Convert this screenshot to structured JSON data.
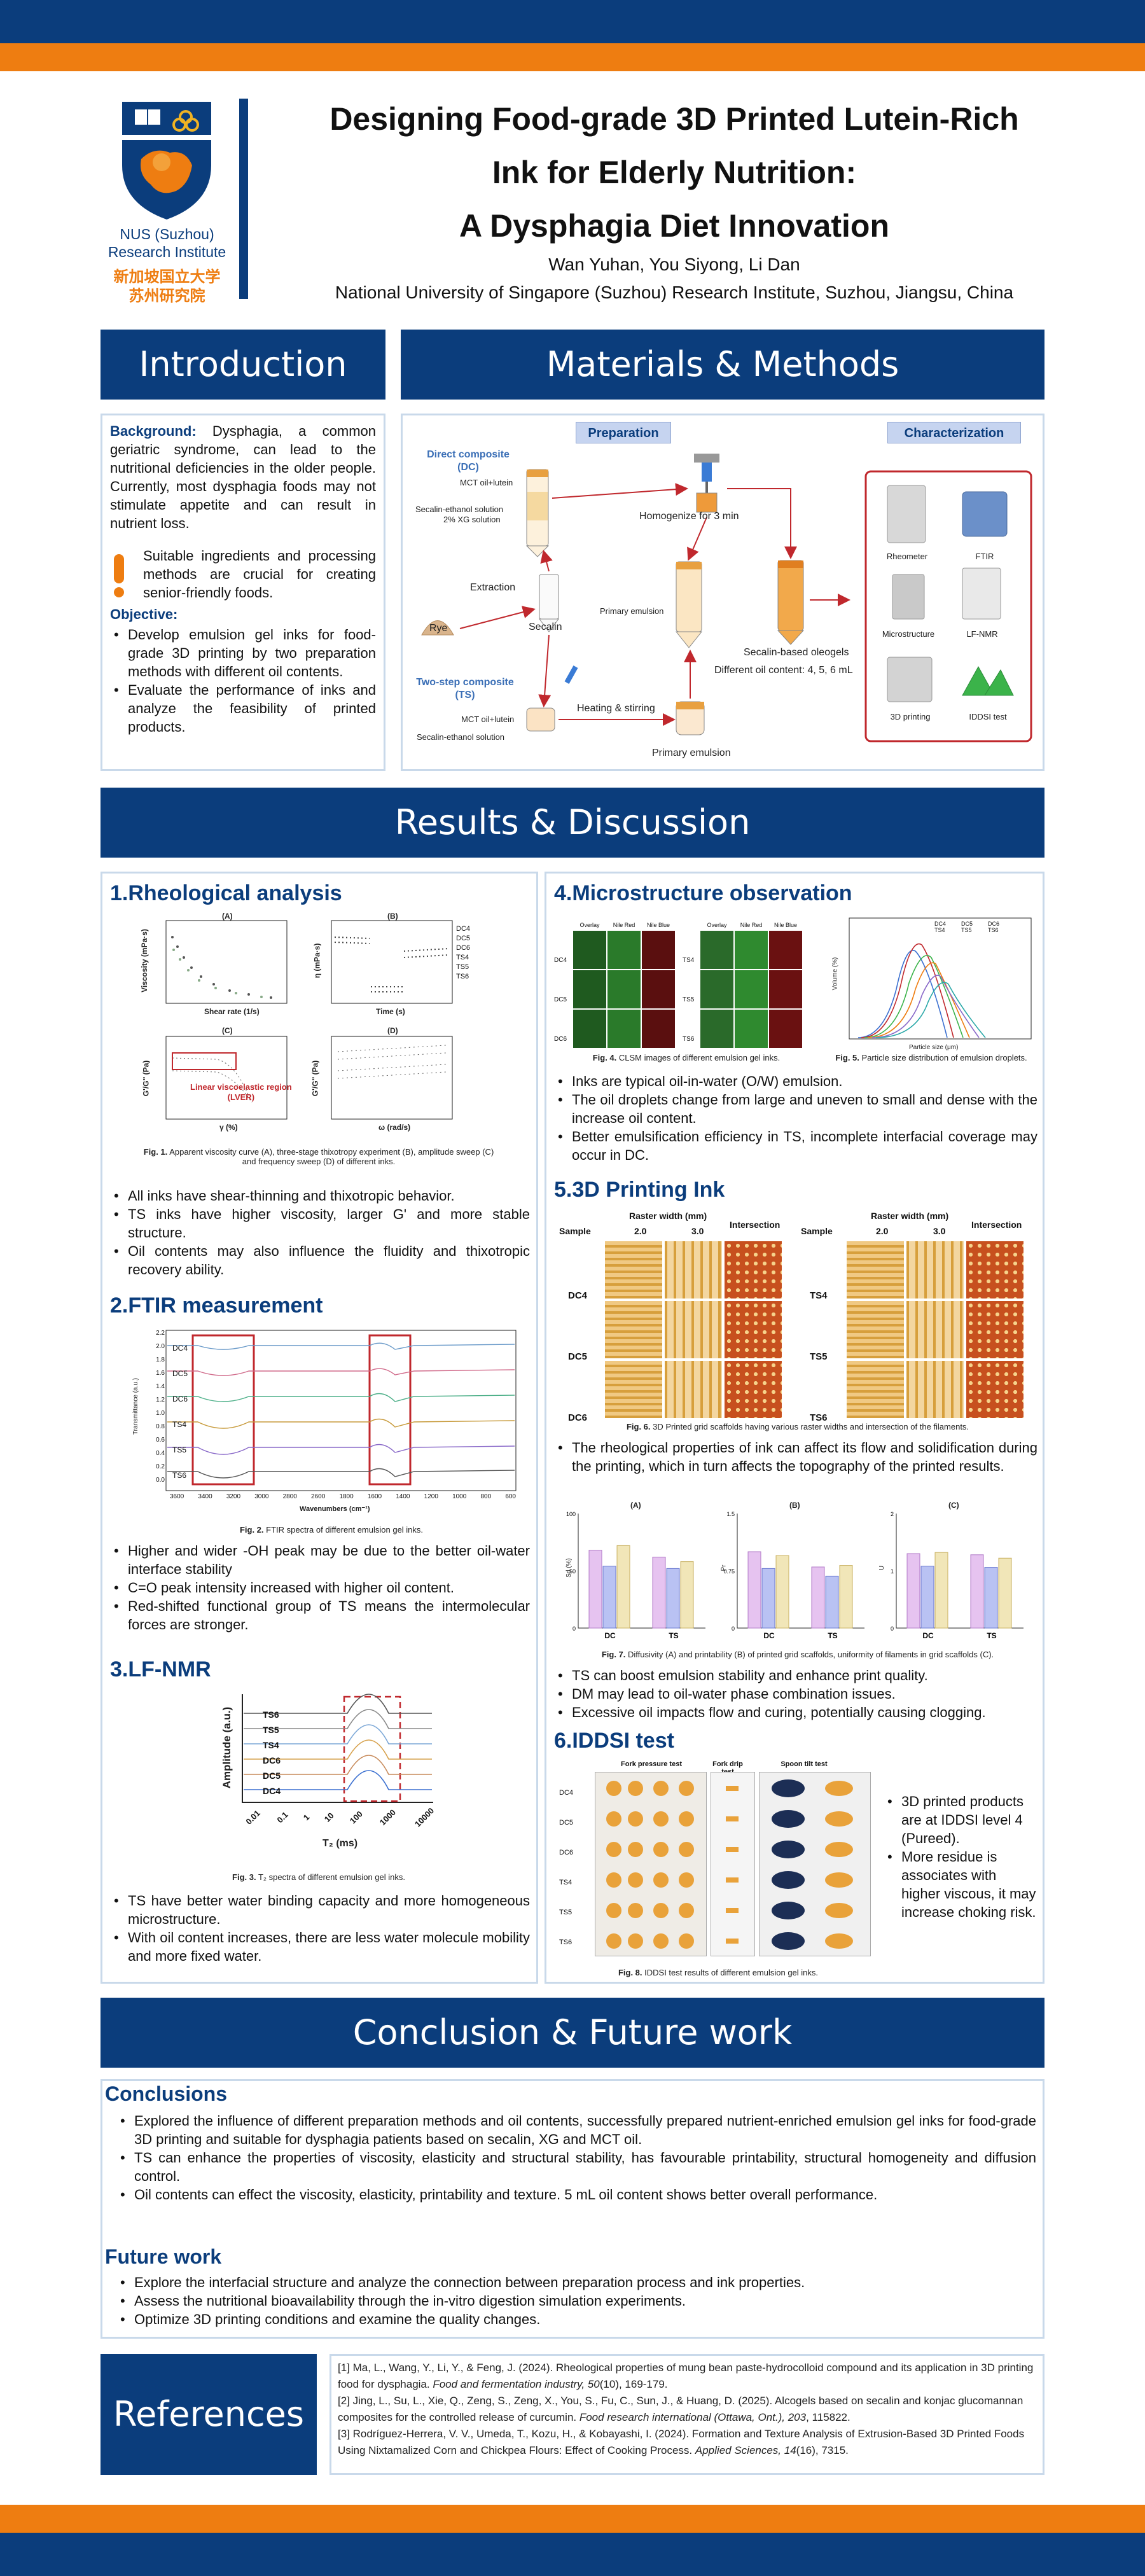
{
  "header": {
    "title_line1": "Designing Food-grade 3D Printed Lutein-Rich",
    "title_line2": "Ink for Elderly Nutrition:",
    "title_line3": "A Dysphagia Diet Innovation",
    "authors": "Wan Yuhan, You Siyong, Li Dan",
    "affiliation": "National University of Singapore (Suzhou) Research Institute, Suzhou, Jiangsu, China",
    "logo_text_en1": "NUS (Suzhou)",
    "logo_text_en2": "Research Institute",
    "logo_text_cn1": "新加坡国立大学",
    "logo_text_cn2": "苏州研究院"
  },
  "colors": {
    "primary": "#0b3d7c",
    "accent": "#ee7d11",
    "panel_border": "#c9d9ea",
    "red": "#c0282d"
  },
  "introduction": {
    "heading": "Introduction",
    "background_label": "Background:",
    "background_text": "Dysphagia, a common geriatric syndrome, can lead to the nutritional deficiencies in the older people. Currently, most dysphagia foods may not stimulate appetite and can result in nutrient loss.",
    "highlight": "Suitable ingredients and processing methods are crucial for creating senior-friendly foods.",
    "objective_label": "Objective:",
    "objectives": [
      "Develop emulsion gel inks for food-grade 3D printing by two preparation methods with different oil contents.",
      "Evaluate the performance of inks and analyze the feasibility of printed products."
    ]
  },
  "methods": {
    "heading": "Materials & Methods",
    "preparation": "Preparation",
    "characterization": "Characterization",
    "dc_title": "Direct composite",
    "dc_abbr": "(DC)",
    "mct_lutein": "MCT oil+lutein",
    "secalin_ethanol": "Secalin-ethanol solution",
    "xg_solution": "2% XG solution",
    "homogenize": "Homogenize for 3 min",
    "extraction": "Extraction",
    "rye": "Rye",
    "secalin": "Secalin",
    "primary_emulsion": "Primary emulsion",
    "ts_title": "Two-step composite",
    "ts_abbr": "(TS)",
    "heating": "Heating & stirring",
    "primary_emulsion_bottom": "Primary emulsion",
    "oleogels": "Secalin-based oleogels",
    "oil_content": "Different oil content: 4, 5, 6 mL",
    "instruments": [
      "Rheometer",
      "FTIR",
      "Microstructure",
      "LF-NMR",
      "3D printing",
      "IDDSI test"
    ]
  },
  "results": {
    "heading": "Results & Discussion",
    "rheology": {
      "title": "1.Rheological analysis",
      "panel_labels": [
        "(A)",
        "(B)",
        "(C)",
        "(D)"
      ],
      "axis_a_x": "Shear rate (1/s)",
      "axis_a_y": "Viscosity (mPa·s)",
      "axis_b_x": "Time (s)",
      "axis_b_y": "η (mPa·s)",
      "axis_c_x": "γ (%)",
      "axis_c_y": "G'/G'' (Pa)",
      "axis_d_x": "ω (rad/s)",
      "axis_d_y": "G'/G'' (Pa)",
      "legend_b": [
        "DC4",
        "DC5",
        "DC6",
        "TS4",
        "TS5",
        "TS6"
      ],
      "lver_line1": "Linear viscoelastic region",
      "lver_line2": "(LVER)",
      "caption_fig": "Fig. 1.",
      "caption": "Apparent viscosity curve (A), three-stage thixotropy experiment (B), amplitude sweep (C) and frequency sweep (D) of different inks.",
      "bullets": [
        "All inks have shear-thinning and thixotropic behavior.",
        "TS inks have higher viscosity, larger G' and more stable structure.",
        "Oil contents may also influence the fluidity and thixotropic recovery ability."
      ]
    },
    "ftir": {
      "title": "2.FTIR measurement",
      "samples": [
        "DC4",
        "DC5",
        "DC6",
        "TS4",
        "TS5",
        "TS6"
      ],
      "xlabel": "Wavenumbers (cm⁻¹)",
      "ylabel": "Transmittance (a.u.)",
      "xticks": [
        "3600",
        "3400",
        "3200",
        "3000",
        "2800",
        "2600",
        "1800",
        "1600",
        "1400",
        "1200",
        "1000",
        "800",
        "600"
      ],
      "yticks": [
        "2.2",
        "2.0",
        "1.8",
        "1.6",
        "1.4",
        "1.2",
        "1.0",
        "0.8",
        "0.6",
        "0.4",
        "0.2",
        "0.0"
      ],
      "caption_fig": "Fig. 2.",
      "caption": "FTIR spectra of different emulsion gel inks.",
      "bullets": [
        "Higher and wider -OH peak may be due to the better oil-water interface stability",
        "C=O peak intensity increased with higher oil content.",
        "Red-shifted functional group of TS means the intermolecular forces are stronger."
      ]
    },
    "nmr": {
      "title": "3.LF-NMR",
      "samples": [
        "TS6",
        "TS5",
        "TS4",
        "DC6",
        "DC5",
        "DC4"
      ],
      "ylabel": "Amplitude (a.u.)",
      "xlabel": "T₂ (ms)",
      "xticks": [
        "0.01",
        "0.1",
        "1",
        "10",
        "100",
        "1000",
        "10000"
      ],
      "caption_fig": "Fig. 3.",
      "caption": "T₂ spectra of different emulsion gel inks.",
      "bullets": [
        "TS have better water binding capacity and more homogeneous microstructure.",
        "With oil content increases, there are less water molecule mobility and more fixed water."
      ]
    },
    "micro": {
      "title": "4.Microstructure observation",
      "col_heads": [
        "Overlay",
        "Nile Red",
        "Nile Blue"
      ],
      "rows_left": [
        "DC4",
        "DC5",
        "DC6"
      ],
      "rows_right": [
        "TS4",
        "TS5",
        "TS6"
      ],
      "fig4_fig": "Fig. 4.",
      "fig4_caption": "CLSM images of different emulsion gel inks.",
      "fig5_fig": "Fig. 5.",
      "fig5_caption": "Particle size distribution of emulsion droplets.",
      "psd_legend": [
        "DC4",
        "DC5",
        "DC6",
        "TS4",
        "TS5",
        "TS6"
      ],
      "psd_xlabel": "Particle size (μm)",
      "psd_ylabel": "Volume (%)",
      "bullets": [
        "Inks are typical oil-in-water (O/W) emulsion.",
        "The oil droplets change from large and uneven to small and dense with the increase oil content.",
        "Better emulsification efficiency in TS, incomplete interfacial coverage may occur in DC."
      ]
    },
    "printing": {
      "title": "5.3D Printing Ink",
      "sample_head": "Sample",
      "raster_head": "Raster width (mm)",
      "raster_values": [
        "2.0",
        "3.0"
      ],
      "intersection_head": "Intersection",
      "rows_left": [
        "DC4",
        "DC5",
        "DC6"
      ],
      "rows_right": [
        "TS4",
        "TS5",
        "TS6"
      ],
      "fig6_fig": "Fig. 6.",
      "fig6_caption": "3D Printed grid scaffolds having various raster widths and intersection of the filaments.",
      "bullet_mid": "The rheological properties of ink can affect its flow and solidification during the printing, which in turn affects the topography of the printed results.",
      "fig7_fig": "Fig. 7.",
      "fig7_caption": "Diffusivity (A) and printability (B) of printed grid scaffolds, uniformity of filaments in grid scaffolds (C).",
      "bullets": [
        "TS can boost emulsion stability and enhance print quality.",
        "DM may lead to oil-water phase combination issues.",
        "Excessive oil impacts flow and curing, potentially causing clogging."
      ]
    },
    "iddsi": {
      "title": "6.IDDSI test",
      "tests": [
        "Fork pressure test",
        "Fork drip test",
        "Spoon tilt test"
      ],
      "samples": [
        "DC4",
        "DC5",
        "DC6",
        "TS4",
        "TS5",
        "TS6"
      ],
      "fig8_fig": "Fig. 8.",
      "fig8_caption": "IDDSI test results of different emulsion gel inks.",
      "bullets": [
        "3D printed products are at IDDSI level 4 (Pureed).",
        "More residue is associates with higher viscous, it may increase choking risk."
      ]
    }
  },
  "chart_data": [
    {
      "type": "bar",
      "title": "(A)",
      "ylabel": "Sd (%)",
      "categories": [
        "DC",
        "TS"
      ],
      "ylim": [
        0,
        100
      ],
      "series": [
        {
          "values": [
            68,
            62
          ]
        },
        {
          "values": [
            54,
            52
          ]
        },
        {
          "values": [
            72,
            58
          ]
        }
      ]
    },
    {
      "type": "bar",
      "title": "(B)",
      "ylabel": "Pr",
      "categories": [
        "DC",
        "TS"
      ],
      "ylim": [
        0,
        1.5
      ],
      "series": [
        {
          "values": [
            1.0,
            0.8
          ]
        },
        {
          "values": [
            0.78,
            0.68
          ]
        },
        {
          "values": [
            0.95,
            0.82
          ]
        }
      ]
    },
    {
      "type": "bar",
      "title": "(C)",
      "ylabel": "U",
      "categories": [
        "DC",
        "TS"
      ],
      "ylim": [
        0,
        2.0
      ],
      "series": [
        {
          "values": [
            1.3,
            1.28
          ]
        },
        {
          "values": [
            1.08,
            1.06
          ]
        },
        {
          "values": [
            1.32,
            1.22
          ]
        }
      ]
    }
  ],
  "conclusion": {
    "heading": "Conclusion & Future work",
    "conclusions_title": "Conclusions",
    "conclusions": [
      "Explored the influence of different preparation methods and oil contents, successfully prepared nutrient-enriched emulsion gel inks for food-grade 3D printing and suitable for dysphagia patients based on secalin, XG and MCT oil.",
      "TS can enhance the properties of viscosity, elasticity and structural stability, has favourable printability, structural homogeneity and diffusion control.",
      "Oil contents can effect the viscosity, elasticity, printability and texture. 5 mL oil content shows better overall performance."
    ],
    "future_title": "Future work",
    "future": [
      "Explore the interfacial structure and analyze the connection between preparation process and ink properties.",
      "Assess the nutritional bioavailability through the in-vitro digestion simulation experiments.",
      "Optimize 3D printing conditions and examine the quality changes."
    ]
  },
  "references": {
    "heading": "References",
    "items": [
      {
        "pre": "[1] Ma, L., Wang, Y., Li, Y., & Feng, J. (2024). Rheological properties of mung bean paste-hydrocolloid compound and its application in 3D printing food for dysphagia. ",
        "journal": "Food and fermentation industry, 50",
        "post": "(10), 169-179."
      },
      {
        "pre": "[2] Jing, L., Su, L., Xie, Q., Zeng, S., Zeng, X., You, S., Fu, C., Sun, J., & Huang, D. (2025). Alcogels based on secalin and konjac glucomannan composites for the controlled release of curcumin. ",
        "journal": "Food research international (Ottawa, Ont.), 203",
        "post": ", 115822."
      },
      {
        "pre": "[3] Rodríguez-Herrera, V. V., Umeda, T., Kozu, H., & Kobayashi, I. (2024). Formation and Texture Analysis of Extrusion-Based 3D Printed Foods Using Nixtamalized Corn and Chickpea Flours: Effect of Cooking Process. ",
        "journal": "Applied Sciences, 14",
        "post": "(16), 7315."
      }
    ]
  }
}
